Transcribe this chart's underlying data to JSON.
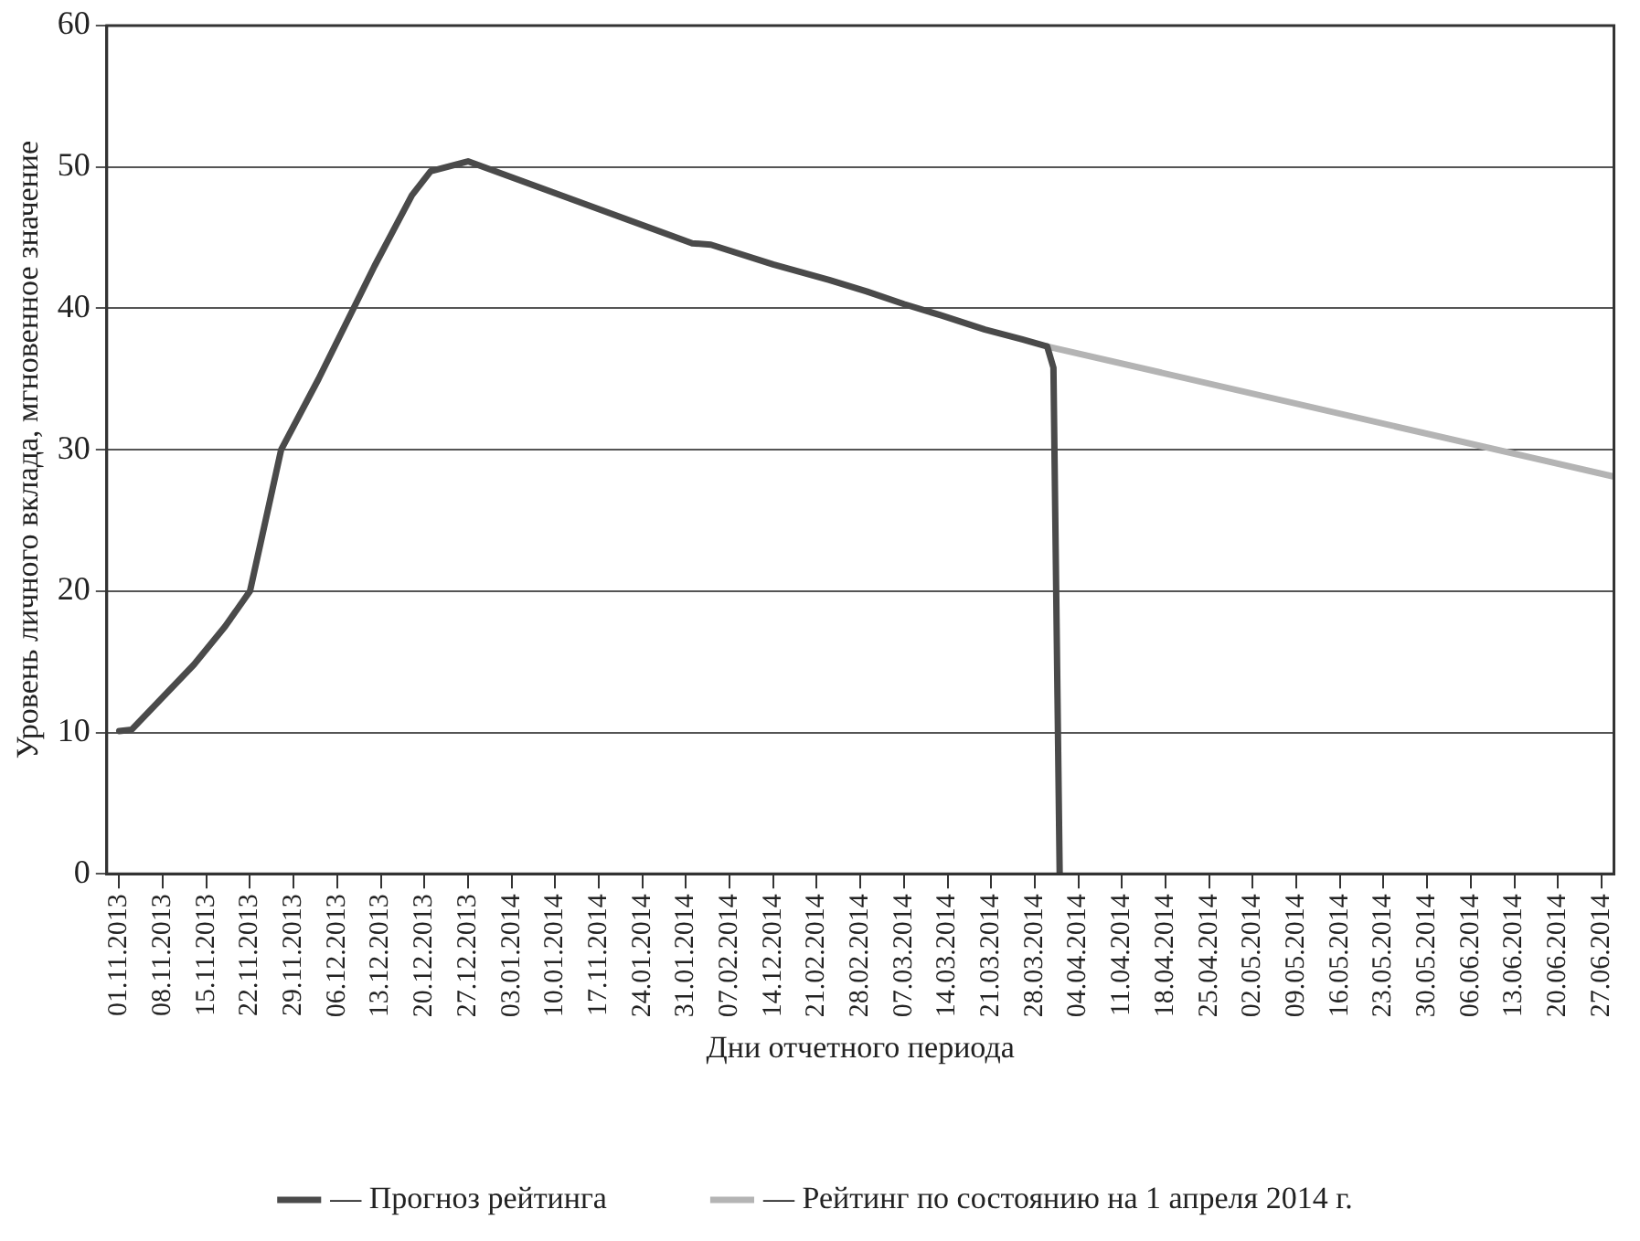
{
  "chart_data": {
    "type": "line",
    "xlabel": "Дни отчетного периода",
    "ylabel": "Уровень личного вклада, мгновенное значение",
    "xlim": [
      "2013-10-30",
      "2014-06-29"
    ],
    "xticks": [
      {
        "value": "2013-11-01",
        "label": "01.11.2013"
      },
      {
        "value": "2013-11-08",
        "label": "08.11.2013"
      },
      {
        "value": "2013-11-15",
        "label": "15.11.2013"
      },
      {
        "value": "2013-11-22",
        "label": "22.11.2013"
      },
      {
        "value": "2013-11-29",
        "label": "29.11.2013"
      },
      {
        "value": "2013-12-06",
        "label": "06.12.2013"
      },
      {
        "value": "2013-12-13",
        "label": "13.12.2013"
      },
      {
        "value": "2013-12-20",
        "label": "20.12.2013"
      },
      {
        "value": "2013-12-27",
        "label": "27.12.2013"
      },
      {
        "value": "2014-01-03",
        "label": "03.01.2014"
      },
      {
        "value": "2014-01-10",
        "label": "10.01.2014"
      },
      {
        "value": "2014-01-17",
        "label": "17.11.2014"
      },
      {
        "value": "2014-01-24",
        "label": "24.01.2014"
      },
      {
        "value": "2014-01-31",
        "label": "31.01.2014"
      },
      {
        "value": "2014-02-07",
        "label": "07.02.2014"
      },
      {
        "value": "2014-02-14",
        "label": "14.12.2014"
      },
      {
        "value": "2014-02-21",
        "label": "21.02.2014"
      },
      {
        "value": "2014-02-28",
        "label": "28.02.2014"
      },
      {
        "value": "2014-03-07",
        "label": "07.03.2014"
      },
      {
        "value": "2014-03-14",
        "label": "14.03.2014"
      },
      {
        "value": "2014-03-21",
        "label": "21.03.2014"
      },
      {
        "value": "2014-03-28",
        "label": "28.03.2014"
      },
      {
        "value": "2014-04-04",
        "label": "04.04.2014"
      },
      {
        "value": "2014-04-11",
        "label": "11.04.2014"
      },
      {
        "value": "2014-04-18",
        "label": "18.04.2014"
      },
      {
        "value": "2014-04-25",
        "label": "25.04.2014"
      },
      {
        "value": "2014-05-02",
        "label": "02.05.2014"
      },
      {
        "value": "2014-05-09",
        "label": "09.05.2014"
      },
      {
        "value": "2014-05-16",
        "label": "16.05.2014"
      },
      {
        "value": "2014-05-23",
        "label": "23.05.2014"
      },
      {
        "value": "2014-05-30",
        "label": "30.05.2014"
      },
      {
        "value": "2014-06-06",
        "label": "06.06.2014"
      },
      {
        "value": "2014-06-13",
        "label": "13.06.2014"
      },
      {
        "value": "2014-06-20",
        "label": "20.06.2014"
      },
      {
        "value": "2014-06-27",
        "label": "27.06.2014"
      }
    ],
    "ylim": [
      0,
      60
    ],
    "yticks": [
      0,
      10,
      20,
      30,
      40,
      50,
      60
    ],
    "grid": "y",
    "legend": "bottom",
    "marker": "none",
    "line_style": "solid",
    "series": [
      {
        "name": "— Прогноз рейтинга",
        "color": "#4a4a4a",
        "x": [
          "2013-11-01",
          "2013-11-03",
          "2013-11-13",
          "2013-11-18",
          "2013-11-22",
          "2013-11-27",
          "2013-12-03",
          "2013-12-12",
          "2013-12-18",
          "2013-12-21",
          "2013-12-27",
          "2014-02-01",
          "2014-02-04",
          "2014-02-14",
          "2014-02-23",
          "2014-03-01",
          "2014-03-07",
          "2014-03-13",
          "2014-03-20",
          "2014-03-26",
          "2014-03-30",
          "2014-03-31",
          "2014-04-01"
        ],
        "values": [
          10.1,
          10.2,
          14.8,
          17.5,
          20,
          30,
          35,
          43,
          48,
          49.7,
          50.4,
          44.6,
          44.5,
          43.1,
          42,
          41.2,
          40.3,
          39.5,
          38.5,
          37.8,
          37.3,
          35.8,
          0
        ]
      },
      {
        "name": "— Рейтинг по состоянию на 1 апреля 2014 г.",
        "color": "#b4b4b4",
        "x": [
          "2014-03-30",
          "2014-06-29"
        ],
        "values": [
          37.3,
          28.1
        ]
      }
    ]
  }
}
